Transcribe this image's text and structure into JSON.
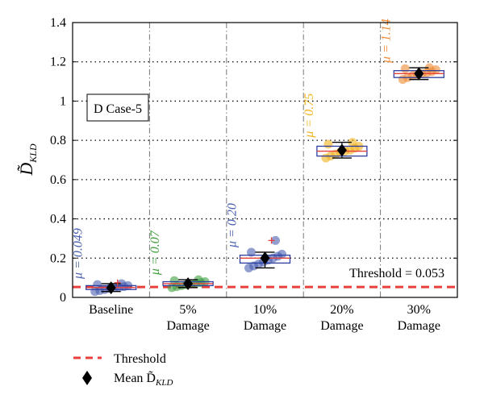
{
  "chart_data": {
    "type": "box",
    "categories": [
      "Baseline",
      "5% Damage",
      "10% Damage",
      "20% Damage",
      "30% Damage"
    ],
    "category_lines": [
      [
        "Baseline"
      ],
      [
        "5%",
        "Damage"
      ],
      [
        "10%",
        "Damage"
      ],
      [
        "20%",
        "Damage"
      ],
      [
        "30%",
        "Damage"
      ]
    ],
    "ylabel": "D̃",
    "ylabel_sub": "KLD",
    "ylim": [
      0,
      1.4
    ],
    "yticks": [
      0,
      0.2,
      0.4,
      0.6,
      0.8,
      1,
      1.2,
      1.4
    ],
    "ytick_labels": [
      "0",
      "0.2",
      "0.4",
      "0.6",
      "0.8",
      "1",
      "1.2",
      "1.4"
    ],
    "grid": "dotted horizontal + dash-dot vertical separators",
    "case_label": "D Case-5",
    "threshold": {
      "value": 0.053,
      "label": "Threshold = 0.053",
      "color": "#e8413c"
    },
    "groups": [
      {
        "category": "Baseline",
        "color": "#4a5fb0",
        "mu_label": "μ = 0.049",
        "mean": 0.049,
        "q1": 0.04,
        "median": 0.05,
        "q3": 0.06,
        "whisker_low": 0.03,
        "whisker_high": 0.07,
        "outliers": [
          0.075
        ],
        "points": [
          0.03,
          0.035,
          0.04,
          0.045,
          0.05,
          0.052,
          0.055,
          0.06,
          0.065,
          0.07
        ]
      },
      {
        "category": "5% Damage",
        "color": "#3f9e3f",
        "mu_label": "μ = 0.07",
        "mean": 0.07,
        "q1": 0.06,
        "median": 0.07,
        "q3": 0.08,
        "whisker_low": 0.05,
        "whisker_high": 0.09,
        "outliers": [],
        "points": [
          0.05,
          0.055,
          0.06,
          0.065,
          0.07,
          0.072,
          0.075,
          0.08,
          0.085,
          0.09
        ]
      },
      {
        "category": "10% Damage",
        "color": "#4a5fb0",
        "mu_label": "μ = 0.20",
        "mean": 0.2,
        "q1": 0.175,
        "median": 0.2,
        "q3": 0.215,
        "whisker_low": 0.15,
        "whisker_high": 0.23,
        "outliers": [
          0.29
        ],
        "points": [
          0.15,
          0.16,
          0.17,
          0.18,
          0.19,
          0.2,
          0.21,
          0.22,
          0.23,
          0.29
        ]
      },
      {
        "category": "20% Damage",
        "color": "#f2b31d",
        "mu_label": "μ = 0.75",
        "mean": 0.75,
        "q1": 0.72,
        "median": 0.745,
        "q3": 0.77,
        "whisker_low": 0.71,
        "whisker_high": 0.79,
        "outliers": [],
        "points": [
          0.71,
          0.72,
          0.73,
          0.74,
          0.745,
          0.75,
          0.76,
          0.77,
          0.78,
          0.79
        ]
      },
      {
        "category": "30% Damage",
        "color": "#ef8a35",
        "mu_label": "μ = 1.14",
        "mean": 1.14,
        "q1": 1.12,
        "median": 1.14,
        "q3": 1.155,
        "whisker_low": 1.11,
        "whisker_high": 1.17,
        "outliers": [],
        "points": [
          1.11,
          1.12,
          1.13,
          1.135,
          1.14,
          1.145,
          1.15,
          1.16,
          1.165,
          1.17
        ]
      }
    ],
    "legend": {
      "placement": "bottom-left",
      "entries": [
        {
          "label": "Threshold",
          "marker": "dashed-line"
        },
        {
          "label": "Mean D̃",
          "label_sub": "KLD",
          "marker": "diamond"
        }
      ]
    }
  }
}
